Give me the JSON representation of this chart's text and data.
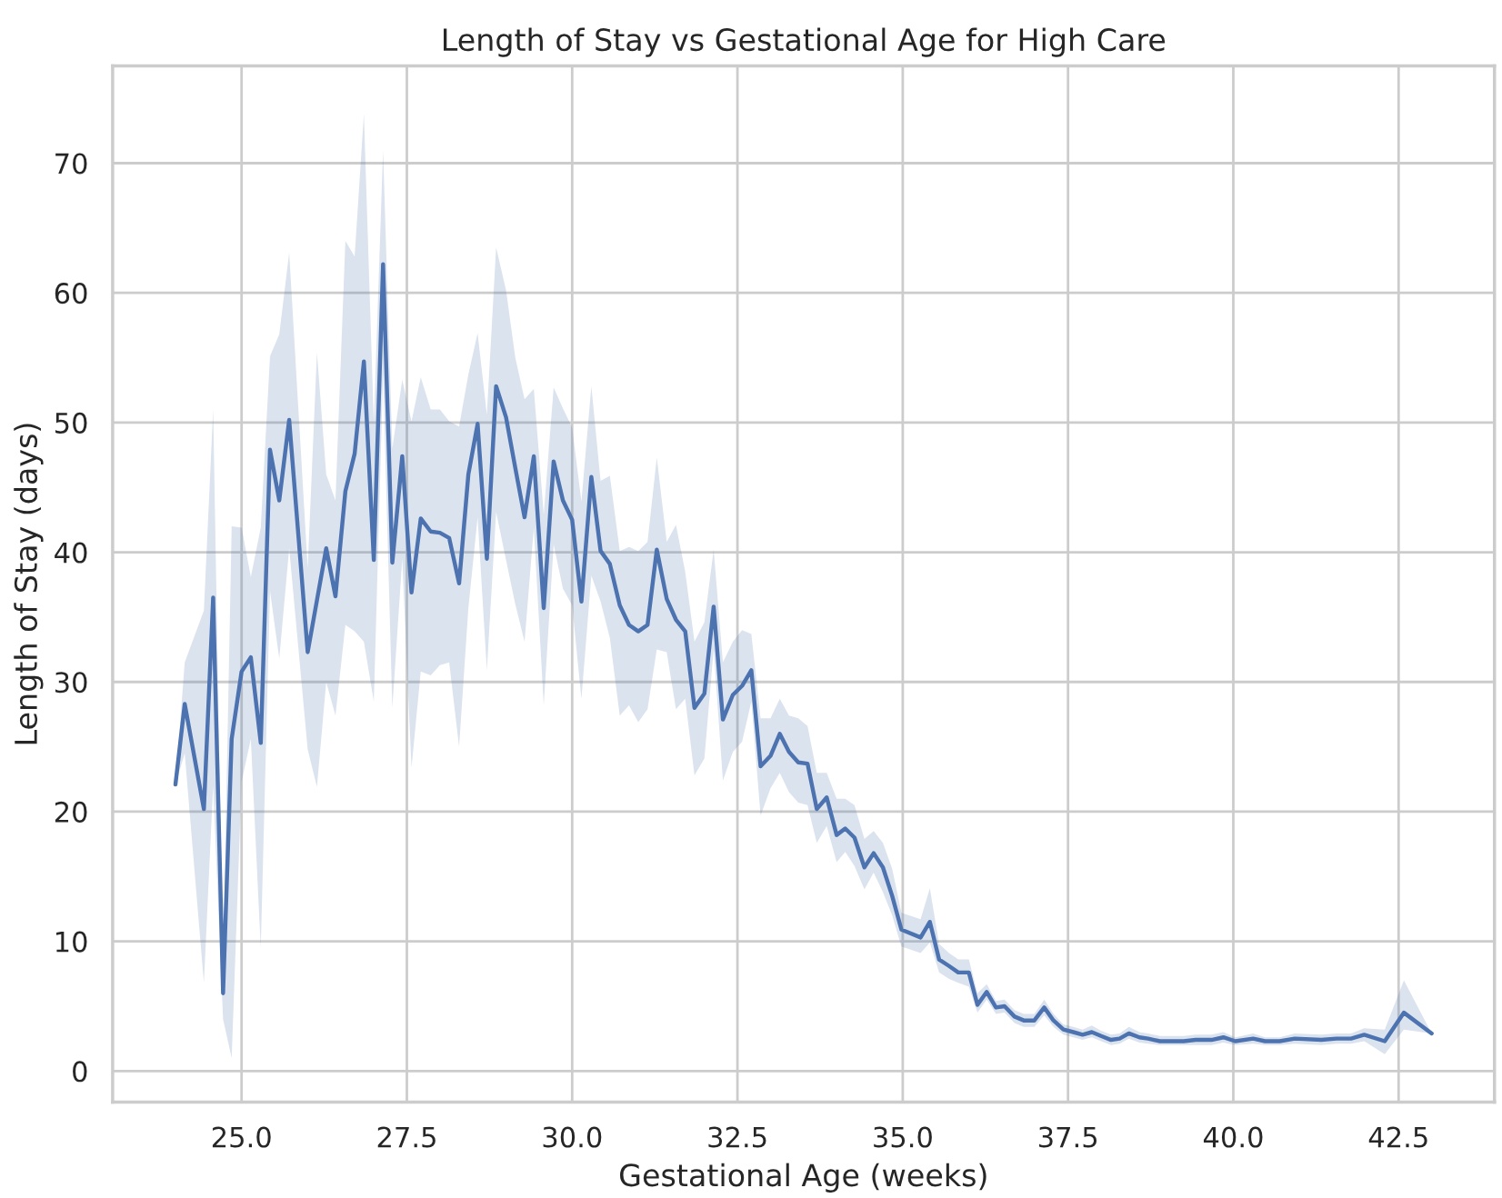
{
  "chart_data": {
    "type": "line",
    "title": "Length of Stay vs Gestational Age for High Care",
    "xlabel": "Gestational Age (weeks)",
    "ylabel": "Length of Stay (days)",
    "x": [
      24.0,
      24.14,
      24.43,
      24.57,
      24.72,
      24.85,
      25.0,
      25.14,
      25.29,
      25.43,
      25.57,
      25.72,
      26.0,
      26.14,
      26.28,
      26.42,
      26.57,
      26.71,
      26.85,
      27.0,
      27.14,
      27.28,
      27.43,
      27.57,
      27.71,
      27.86,
      28.0,
      28.14,
      28.29,
      28.43,
      28.57,
      28.71,
      28.85,
      29.0,
      29.14,
      29.28,
      29.42,
      29.57,
      29.72,
      29.86,
      30.0,
      30.14,
      30.29,
      30.43,
      30.57,
      30.72,
      30.86,
      31.0,
      31.14,
      31.28,
      31.43,
      31.57,
      31.71,
      31.85,
      32.0,
      32.14,
      32.28,
      32.43,
      32.57,
      32.71,
      32.85,
      33.0,
      33.14,
      33.28,
      33.42,
      33.56,
      33.7,
      33.85,
      34.0,
      34.13,
      34.27,
      34.42,
      34.56,
      34.7,
      34.84,
      34.98,
      35.27,
      35.41,
      35.55,
      35.7,
      35.84,
      36.0,
      36.13,
      36.27,
      36.41,
      36.54,
      36.69,
      36.83,
      36.99,
      37.14,
      37.28,
      37.43,
      37.58,
      37.72,
      37.86,
      38.0,
      38.15,
      38.28,
      38.42,
      38.58,
      38.71,
      38.89,
      39.25,
      39.43,
      39.67,
      39.85,
      40.03,
      40.3,
      40.48,
      40.7,
      40.93,
      41.33,
      41.56,
      41.78,
      41.98,
      42.29,
      42.58,
      43.0
    ],
    "series": [
      {
        "color": "#4c72b0",
        "values": [
          22.1,
          28.3,
          20.2,
          36.5,
          6.0,
          25.6,
          30.8,
          31.9,
          25.3,
          47.9,
          44.0,
          50.2,
          32.3,
          36.3,
          40.3,
          36.6,
          44.7,
          47.6,
          54.7,
          39.4,
          62.2,
          39.2,
          47.4,
          36.9,
          42.6,
          41.6,
          41.5,
          41.1,
          37.6,
          46.0,
          49.9,
          39.5,
          52.8,
          50.4,
          46.5,
          42.7,
          47.4,
          35.7,
          47.0,
          44.0,
          42.5,
          36.2,
          45.8,
          40.1,
          39.1,
          35.9,
          34.4,
          33.9,
          34.4,
          40.2,
          36.4,
          34.8,
          33.9,
          28.0,
          29.1,
          35.8,
          27.1,
          29.0,
          29.7,
          30.9,
          23.5,
          24.3,
          26.0,
          24.6,
          23.8,
          23.7,
          20.2,
          21.1,
          18.2,
          18.7,
          18.0,
          15.7,
          16.8,
          15.7,
          13.5,
          10.9,
          10.3,
          11.5,
          8.6,
          8.1,
          7.6,
          7.6,
          5.1,
          6.1,
          4.9,
          5.0,
          4.2,
          3.9,
          3.9,
          4.9,
          3.9,
          3.2,
          3.0,
          2.8,
          3.0,
          2.7,
          2.4,
          2.5,
          2.9,
          2.6,
          2.5,
          2.3,
          2.3,
          2.4,
          2.4,
          2.6,
          2.3,
          2.5,
          2.3,
          2.3,
          2.5,
          2.4,
          2.5,
          2.5,
          2.8,
          2.3,
          4.5,
          2.9
        ],
        "lower": [
          22.1,
          24.5,
          6.8,
          22.0,
          4.0,
          1.0,
          22.3,
          25.6,
          9.5,
          37.0,
          31.8,
          40.3,
          24.8,
          21.9,
          30.0,
          27.4,
          34.4,
          33.9,
          33.1,
          28.5,
          53.7,
          28.0,
          39.5,
          23.4,
          30.8,
          30.5,
          31.3,
          31.5,
          25.0,
          35.7,
          42.7,
          30.9,
          43.1,
          39.4,
          36.0,
          33.1,
          41.9,
          28.2,
          40.6,
          37.2,
          35.9,
          28.7,
          38.2,
          36.2,
          33.4,
          27.4,
          28.2,
          26.9,
          27.9,
          32.5,
          32.3,
          27.9,
          28.7,
          22.8,
          24.1,
          32.5,
          22.4,
          24.6,
          25.4,
          28.5,
          19.7,
          21.8,
          23.0,
          21.5,
          20.7,
          20.5,
          17.6,
          18.9,
          16.1,
          16.9,
          15.8,
          14.0,
          15.3,
          13.8,
          12.0,
          9.6,
          9.1,
          9.9,
          7.6,
          7.1,
          6.8,
          6.5,
          4.5,
          5.5,
          4.4,
          4.5,
          3.7,
          3.4,
          3.4,
          4.3,
          3.4,
          2.8,
          2.6,
          2.4,
          2.6,
          2.3,
          2.0,
          2.1,
          2.5,
          2.2,
          2.1,
          2.0,
          2.0,
          2.0,
          2.0,
          2.2,
          2.0,
          2.1,
          2.0,
          2.0,
          2.1,
          2.0,
          2.1,
          2.1,
          2.3,
          1.3,
          3.2,
          2.9
        ],
        "upper": [
          22.1,
          31.5,
          35.5,
          51.0,
          8.0,
          42.0,
          41.9,
          38.1,
          41.9,
          55.1,
          56.8,
          63.1,
          38.8,
          55.4,
          46.0,
          44.0,
          64.0,
          62.8,
          73.8,
          50.0,
          71.0,
          48.0,
          53.3,
          50.1,
          53.5,
          51.0,
          51.0,
          50.1,
          49.7,
          53.7,
          56.9,
          50.6,
          63.5,
          60.2,
          55.0,
          51.8,
          52.6,
          42.9,
          52.7,
          51.1,
          49.6,
          43.9,
          52.8,
          45.5,
          45.9,
          40.1,
          40.4,
          40.1,
          40.8,
          47.3,
          40.8,
          42.1,
          38.5,
          33.1,
          34.6,
          40.2,
          31.5,
          33.1,
          34.0,
          33.7,
          27.2,
          27.2,
          28.7,
          27.4,
          27.2,
          26.6,
          23.0,
          23.0,
          21.0,
          21.0,
          20.5,
          17.9,
          18.5,
          17.6,
          15.6,
          12.2,
          11.7,
          14.1,
          9.8,
          9.1,
          8.6,
          8.6,
          6.0,
          6.7,
          5.4,
          5.5,
          4.7,
          4.4,
          4.4,
          5.5,
          4.4,
          3.6,
          3.4,
          3.2,
          3.5,
          3.1,
          2.8,
          2.9,
          3.4,
          3.0,
          2.9,
          2.7,
          2.7,
          2.8,
          2.8,
          3.0,
          2.6,
          2.9,
          2.6,
          2.6,
          2.9,
          2.8,
          2.9,
          2.9,
          3.3,
          3.2,
          7.0,
          2.9
        ]
      }
    ],
    "xlim": [
      23.05,
      43.95
    ],
    "ylim": [
      -2.4,
      77.5
    ],
    "xticks": [
      {
        "value": 25,
        "label": "25.0"
      },
      {
        "value": 27.5,
        "label": "27.5"
      },
      {
        "value": 30,
        "label": "30.0"
      },
      {
        "value": 32.5,
        "label": "32.5"
      },
      {
        "value": 35,
        "label": "35.0"
      },
      {
        "value": 37.5,
        "label": "37.5"
      },
      {
        "value": 40,
        "label": "40.0"
      },
      {
        "value": 42.5,
        "label": "42.5"
      }
    ],
    "yticks": [
      0,
      10,
      20,
      30,
      40,
      50,
      60,
      70
    ],
    "grid": true
  }
}
